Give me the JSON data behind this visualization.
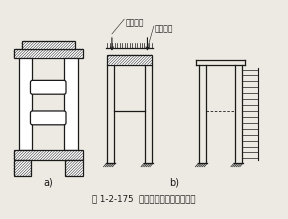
{
  "title": "图 1-2-175  拱上建筑横向按刚架分析",
  "label_a": "a)",
  "label_b": "b)",
  "label_zong": "纵梁反力",
  "label_fen": "分布荷载",
  "bg_color": "#ede9e3",
  "line_color": "#1a1a1a",
  "fig_width": 2.88,
  "fig_height": 2.19,
  "dpi": 100
}
